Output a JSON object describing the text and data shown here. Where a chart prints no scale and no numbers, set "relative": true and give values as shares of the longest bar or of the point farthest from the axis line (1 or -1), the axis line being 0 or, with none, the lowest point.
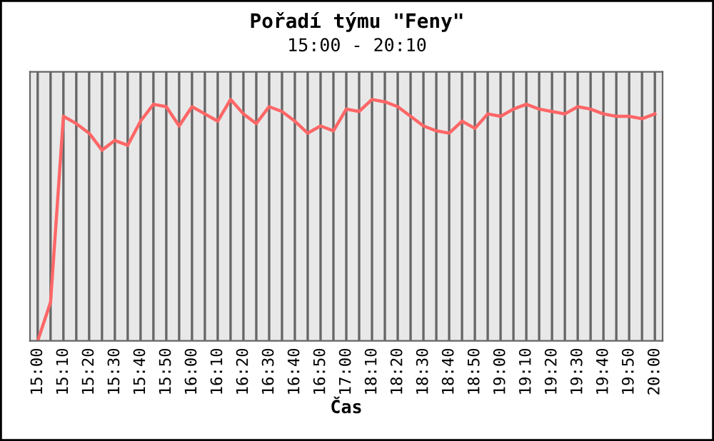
{
  "chart_data": {
    "type": "line",
    "title": "Pořadí týmu \"Feny\"",
    "subtitle": "15:00 - 20:10",
    "xlabel": "Čas",
    "relative": true,
    "grid": "x",
    "marker": "none",
    "line_style": "solid",
    "categories": [
      "15:00",
      null,
      "15:10",
      null,
      "15:20",
      null,
      "15:30",
      null,
      "15:40",
      null,
      "15:50",
      null,
      "16:00",
      null,
      "16:10",
      null,
      "16:20",
      null,
      "16:30",
      null,
      "16:40",
      null,
      "16:50",
      null,
      "17:00",
      null,
      "18:10",
      null,
      "18:20",
      null,
      "18:30",
      null,
      "18:40",
      null,
      "18:50",
      null,
      "19:00",
      null,
      "19:10",
      null,
      "19:20",
      null,
      "19:30",
      null,
      "19:40",
      null,
      "19:50",
      null,
      "20:00"
    ],
    "series": [
      {
        "color": "#ff6666",
        "values": [
          0,
          0.16,
          0.93,
          0.9,
          0.86,
          0.79,
          0.83,
          0.81,
          0.91,
          0.98,
          0.97,
          0.89,
          0.97,
          0.94,
          0.91,
          1.0,
          0.94,
          0.9,
          0.97,
          0.95,
          0.91,
          0.86,
          0.89,
          0.87,
          0.96,
          0.95,
          1.0,
          0.99,
          0.97,
          0.93,
          0.89,
          0.87,
          0.86,
          0.91,
          0.88,
          0.94,
          0.93,
          0.96,
          0.98,
          0.96,
          0.95,
          0.94,
          0.97,
          0.96,
          0.94,
          0.93,
          0.93,
          0.92,
          0.94
        ]
      }
    ]
  }
}
